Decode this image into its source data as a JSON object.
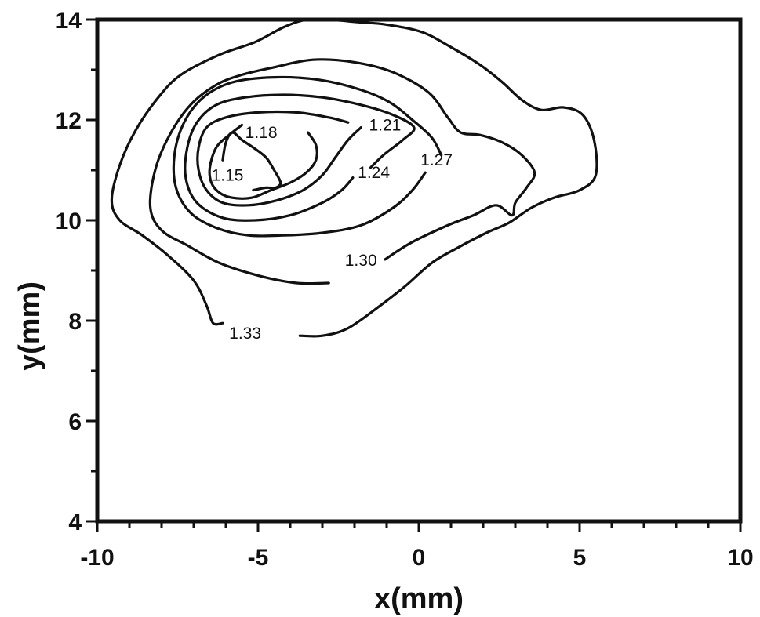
{
  "chart_data": {
    "type": "contour",
    "xlabel": "x(mm)",
    "ylabel": "y(mm)",
    "xlim": [
      -10,
      10
    ],
    "ylim": [
      4,
      14
    ],
    "x_ticks": [
      -10,
      -5,
      0,
      5,
      10
    ],
    "y_ticks": [
      4,
      6,
      8,
      10,
      12,
      14
    ],
    "x_tick_labels": [
      "-10",
      "-5",
      "0",
      "5",
      "10"
    ],
    "y_tick_labels": [
      "4",
      "6",
      "8",
      "10",
      "12",
      "14"
    ],
    "minor_tick_step": 1,
    "grid": false,
    "levels": [
      {
        "value": 1.15,
        "label": "1.15",
        "label_at": [
          -5.95,
          10.9
        ],
        "points": [
          [
            -6.1,
            11.2
          ],
          [
            -6.0,
            11.55
          ],
          [
            -5.8,
            11.75
          ],
          [
            -5.5,
            11.6
          ],
          [
            -5.15,
            11.45
          ],
          [
            -4.75,
            11.25
          ],
          [
            -4.5,
            11.0
          ],
          [
            -4.3,
            10.75
          ],
          [
            -4.45,
            10.65
          ],
          [
            -4.75,
            10.65
          ],
          [
            -5.15,
            10.6
          ]
        ]
      },
      {
        "value": 1.18,
        "label": "1.18",
        "label_at": [
          -4.9,
          11.75
        ],
        "points": [
          [
            -5.5,
            11.9
          ],
          [
            -5.9,
            11.7
          ],
          [
            -6.3,
            11.45
          ],
          [
            -6.5,
            11.05
          ],
          [
            -6.45,
            10.75
          ],
          [
            -6.2,
            10.55
          ],
          [
            -5.8,
            10.45
          ],
          [
            -5.2,
            10.45
          ],
          [
            -4.6,
            10.6
          ],
          [
            -4.0,
            10.75
          ],
          [
            -3.5,
            10.95
          ],
          [
            -3.2,
            11.2
          ],
          [
            -3.2,
            11.5
          ],
          [
            -3.45,
            11.75
          ]
        ]
      },
      {
        "value": 1.21,
        "label": "1.21",
        "label_at": [
          -1.05,
          11.9
        ],
        "points": [
          [
            -1.8,
            11.85
          ],
          [
            -2.2,
            11.6
          ],
          [
            -2.6,
            11.25
          ],
          [
            -3.0,
            10.9
          ],
          [
            -3.6,
            10.6
          ],
          [
            -4.4,
            10.4
          ],
          [
            -5.3,
            10.3
          ],
          [
            -6.1,
            10.35
          ],
          [
            -6.6,
            10.6
          ],
          [
            -6.85,
            11.0
          ],
          [
            -6.85,
            11.45
          ],
          [
            -6.6,
            11.85
          ],
          [
            -6.0,
            12.05
          ],
          [
            -5.0,
            12.15
          ],
          [
            -3.8,
            12.15
          ],
          [
            -2.8,
            12.05
          ],
          [
            -2.2,
            11.95
          ]
        ]
      },
      {
        "value": 1.24,
        "label": "1.24",
        "label_at": [
          -1.4,
          10.95
        ],
        "points": [
          [
            -2.05,
            10.85
          ],
          [
            -2.4,
            10.6
          ],
          [
            -3.0,
            10.35
          ],
          [
            -4.0,
            10.1
          ],
          [
            -5.1,
            10.0
          ],
          [
            -6.1,
            10.05
          ],
          [
            -6.9,
            10.35
          ],
          [
            -7.25,
            10.85
          ],
          [
            -7.2,
            11.45
          ],
          [
            -6.9,
            11.95
          ],
          [
            -6.3,
            12.3
          ],
          [
            -5.4,
            12.45
          ],
          [
            -4.2,
            12.5
          ],
          [
            -3.0,
            12.45
          ],
          [
            -1.8,
            12.3
          ],
          [
            -0.8,
            12.1
          ],
          [
            -0.15,
            11.85
          ],
          [
            -0.5,
            11.6
          ],
          [
            -1.1,
            11.3
          ],
          [
            -1.5,
            11.05
          ]
        ]
      },
      {
        "value": 1.27,
        "label": "1.27",
        "label_at": [
          0.55,
          11.2
        ],
        "points": [
          [
            0.2,
            10.95
          ],
          [
            -0.2,
            10.6
          ],
          [
            -0.8,
            10.25
          ],
          [
            -1.8,
            9.9
          ],
          [
            -3.0,
            9.75
          ],
          [
            -4.2,
            9.7
          ],
          [
            -5.3,
            9.7
          ],
          [
            -6.3,
            9.85
          ],
          [
            -7.1,
            10.15
          ],
          [
            -7.55,
            10.65
          ],
          [
            -7.6,
            11.3
          ],
          [
            -7.3,
            11.95
          ],
          [
            -6.7,
            12.45
          ],
          [
            -5.8,
            12.75
          ],
          [
            -4.5,
            12.85
          ],
          [
            -3.1,
            12.8
          ],
          [
            -1.8,
            12.6
          ],
          [
            -0.9,
            12.35
          ],
          [
            -0.2,
            12.0
          ],
          [
            0.4,
            11.65
          ],
          [
            0.7,
            11.3
          ]
        ]
      },
      {
        "value": 1.3,
        "label": "1.30",
        "label_at": [
          -1.8,
          9.2
        ],
        "points": [
          [
            -1.05,
            9.22
          ],
          [
            -0.25,
            9.55
          ],
          [
            0.9,
            9.9
          ],
          [
            1.7,
            10.1
          ],
          [
            2.4,
            10.3
          ],
          [
            2.9,
            10.1
          ],
          [
            3.0,
            10.35
          ],
          [
            3.35,
            10.65
          ],
          [
            3.6,
            10.95
          ],
          [
            3.2,
            11.3
          ],
          [
            2.6,
            11.55
          ],
          [
            1.9,
            11.7
          ],
          [
            1.3,
            11.75
          ],
          [
            0.9,
            12.05
          ],
          [
            0.3,
            12.55
          ],
          [
            -0.8,
            12.95
          ],
          [
            -2.0,
            13.15
          ],
          [
            -3.3,
            13.2
          ],
          [
            -4.5,
            13.05
          ],
          [
            -5.5,
            12.9
          ],
          [
            -6.3,
            12.7
          ],
          [
            -7.1,
            12.3
          ],
          [
            -7.75,
            11.7
          ],
          [
            -8.2,
            11.0
          ],
          [
            -8.35,
            10.25
          ],
          [
            -8.0,
            9.8
          ],
          [
            -7.2,
            9.5
          ],
          [
            -6.2,
            9.15
          ],
          [
            -5.0,
            8.9
          ],
          [
            -3.8,
            8.75
          ],
          [
            -2.8,
            8.75
          ]
        ]
      },
      {
        "value": 1.33,
        "label": "1.33",
        "label_at": [
          -5.4,
          7.75
        ],
        "points": [
          [
            -3.7,
            7.7
          ],
          [
            -3.0,
            7.7
          ],
          [
            -2.2,
            7.85
          ],
          [
            -1.2,
            8.3
          ],
          [
            -0.4,
            8.7
          ],
          [
            0.4,
            9.15
          ],
          [
            1.2,
            9.45
          ],
          [
            2.1,
            9.75
          ],
          [
            2.8,
            9.95
          ],
          [
            3.5,
            10.25
          ],
          [
            4.2,
            10.45
          ],
          [
            5.0,
            10.6
          ],
          [
            5.5,
            10.9
          ],
          [
            5.45,
            11.6
          ],
          [
            5.1,
            12.1
          ],
          [
            4.5,
            12.25
          ],
          [
            3.8,
            12.2
          ],
          [
            3.2,
            12.4
          ],
          [
            2.6,
            12.75
          ],
          [
            1.9,
            13.1
          ],
          [
            1.0,
            13.45
          ],
          [
            0.1,
            13.75
          ],
          [
            -1.0,
            13.9
          ],
          [
            -1.9,
            13.95
          ],
          [
            -2.8,
            14.0
          ],
          [
            -3.5,
            14.0
          ],
          [
            -4.2,
            13.85
          ],
          [
            -5.1,
            13.55
          ],
          [
            -6.2,
            13.3
          ],
          [
            -7.4,
            12.9
          ],
          [
            -8.1,
            12.45
          ],
          [
            -8.8,
            11.8
          ],
          [
            -9.3,
            11.1
          ],
          [
            -9.55,
            10.4
          ],
          [
            -9.3,
            10.0
          ],
          [
            -8.6,
            9.7
          ],
          [
            -7.8,
            9.3
          ],
          [
            -7.0,
            8.8
          ],
          [
            -6.6,
            8.3
          ],
          [
            -6.4,
            7.95
          ],
          [
            -6.1,
            7.95
          ]
        ]
      }
    ]
  }
}
